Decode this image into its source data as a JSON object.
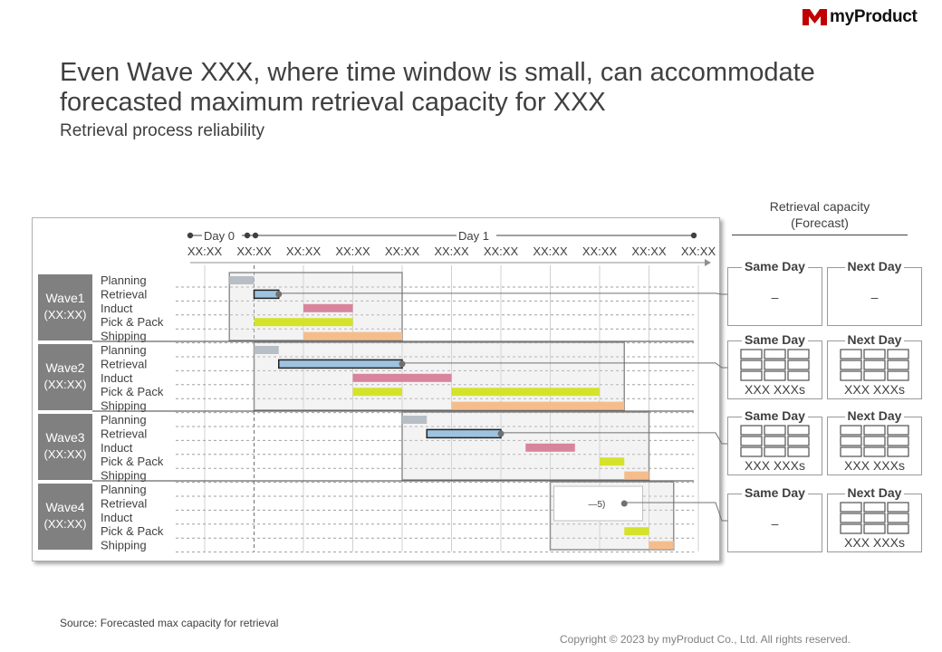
{
  "brand": {
    "name": "myProduct",
    "color": "#c00000",
    "logo_icon": "myproduct-logo-icon"
  },
  "title": "Even Wave XXX, where time window is small, can accommodate forecasted maximum retrieval capacity for XXX",
  "subtitle": "Retrieval process reliability",
  "timeline": {
    "day_labels": [
      "Day 0",
      "Day 1"
    ],
    "time_labels": [
      "XX:XX",
      "XX:XX",
      "XX:XX",
      "XX:XX",
      "XX:XX",
      "XX:XX",
      "XX:XX",
      "XX:XX",
      "XX:XX",
      "XX:XX",
      "XX:XX"
    ],
    "process_labels": [
      "Planning",
      "Retrieval",
      "Induct",
      "Pick & Pack",
      "Shipping"
    ]
  },
  "process_colors": {
    "Planning": "#b8bec6",
    "Retrieval": "#9dc3e0",
    "Induct": "#d8849c",
    "Pick & Pack": "#d4e32a",
    "Shipping": "#f6bd8c"
  },
  "waves": [
    {
      "name": "Wave1",
      "time": "(XX:XX)",
      "bars": [
        {
          "process": "Planning",
          "start": 0.5,
          "end": 1.0
        },
        {
          "process": "Retrieval",
          "start": 1.0,
          "end": 1.5,
          "outlined": true
        },
        {
          "process": "Induct",
          "start": 2.0,
          "end": 3.0
        },
        {
          "process": "Pick & Pack",
          "start": 1.0,
          "end": 3.0
        },
        {
          "process": "Shipping",
          "start": 2.0,
          "end": 4.0
        }
      ]
    },
    {
      "name": "Wave2",
      "time": "(XX:XX)",
      "bars": [
        {
          "process": "Planning",
          "start": 1.0,
          "end": 1.5
        },
        {
          "process": "Retrieval",
          "start": 1.5,
          "end": 4.0,
          "outlined": true
        },
        {
          "process": "Induct",
          "start": 3.0,
          "end": 5.0
        },
        {
          "process": "Pick & Pack",
          "start": 3.0,
          "end": 4.0
        },
        {
          "process": "Pick & Pack",
          "start": 5.0,
          "end": 8.0
        },
        {
          "process": "Shipping",
          "start": 5.0,
          "end": 8.5
        }
      ]
    },
    {
      "name": "Wave3",
      "time": "(XX:XX)",
      "bars": [
        {
          "process": "Planning",
          "start": 4.0,
          "end": 4.5
        },
        {
          "process": "Retrieval",
          "start": 4.5,
          "end": 6.0,
          "outlined": true
        },
        {
          "process": "Induct",
          "start": 6.5,
          "end": 7.5
        },
        {
          "process": "Pick & Pack",
          "start": 8.0,
          "end": 8.5
        },
        {
          "process": "Shipping",
          "start": 8.5,
          "end": 9.0
        }
      ]
    },
    {
      "name": "Wave4",
      "time": "(XX:XX)",
      "note": "5)",
      "bars": [
        {
          "process": "Pick & Pack",
          "start": 8.5,
          "end": 9.0
        },
        {
          "process": "Shipping",
          "start": 9.0,
          "end": 9.5
        }
      ]
    }
  ],
  "capacity": {
    "header": "Retrieval capacity\n(Forecast)",
    "header_line1": "Retrieval capacity",
    "header_line2": "(Forecast)",
    "same_day_label": "Same Day",
    "next_day_label": "Next Day",
    "unit_label": "XXX XXXs",
    "dash": "–",
    "rows": [
      {
        "same_day": "dash",
        "next_day": "dash"
      },
      {
        "same_day": "units",
        "next_day": "units"
      },
      {
        "same_day": "units",
        "next_day": "units"
      },
      {
        "same_day": "dash",
        "next_day": "units"
      }
    ]
  },
  "source": "Source: Forecasted max capacity for retrieval",
  "copyright": "Copyright © 2023 by myProduct Co., Ltd.  All rights reserved."
}
